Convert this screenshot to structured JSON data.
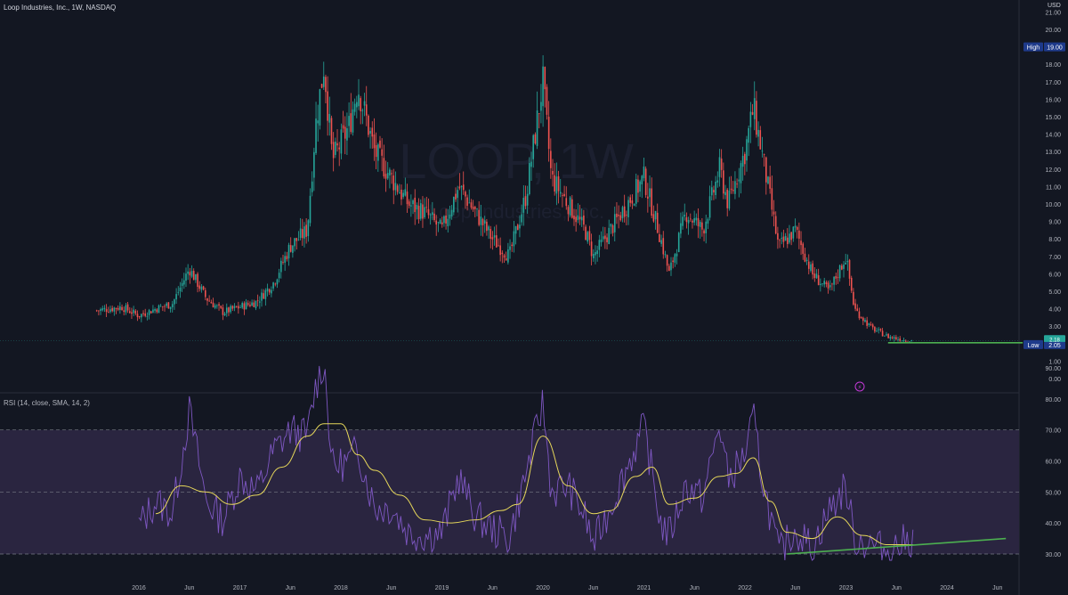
{
  "header": {
    "title": "Loop Industries, Inc., 1W, NASDAQ",
    "currency": "USD",
    "watermark_symbol": "LOOP, 1W",
    "watermark_name": "Loop Industries, Inc."
  },
  "rsi_panel": {
    "label": "RSI (14, close, SMA, 14, 2)"
  },
  "colors": {
    "background": "#131722",
    "up": "#26a69a",
    "down": "#ef5350",
    "rsi_line": "#7e57c2",
    "rsi_sma": "#e6d75a",
    "trendline": "#4caf50",
    "band_fill": "#2a2540",
    "high_badge": "#1e3a8a",
    "low_badge": "#1e3a8a",
    "price_badge": "#26a69a"
  },
  "chart_data": [
    {
      "type": "candlestick",
      "title": "Loop Industries, Inc., 1W, NASDAQ",
      "ylabel": "USD",
      "ylim": [
        -0.5,
        21
      ],
      "y_ticks": [
        "0.00",
        "1.00",
        "2.00",
        "3.00",
        "4.00",
        "5.00",
        "6.00",
        "7.00",
        "8.00",
        "9.00",
        "10.00",
        "11.00",
        "12.00",
        "13.00",
        "14.00",
        "15.00",
        "16.00",
        "17.00",
        "18.00",
        "19.00",
        "20.00",
        "21.00"
      ],
      "x_ticks": [
        "2016",
        "Jun",
        "2017",
        "Jun",
        "2018",
        "Jun",
        "2019",
        "Jun",
        "2020",
        "Jun",
        "2021",
        "Jun",
        "2022",
        "Jun",
        "2023",
        "Jun",
        "2024",
        "Jun"
      ],
      "close_path": [
        {
          "date": "2015-08",
          "close": 3.9
        },
        {
          "date": "2015-11",
          "close": 4.1
        },
        {
          "date": "2016-01",
          "close": 3.6
        },
        {
          "date": "2016-03",
          "close": 4.0
        },
        {
          "date": "2016-05",
          "close": 4.3
        },
        {
          "date": "2016-07",
          "close": 6.3
        },
        {
          "date": "2016-09",
          "close": 4.6
        },
        {
          "date": "2016-11",
          "close": 3.8
        },
        {
          "date": "2017-01",
          "close": 4.1
        },
        {
          "date": "2017-03",
          "close": 4.4
        },
        {
          "date": "2017-05",
          "close": 5.5
        },
        {
          "date": "2017-07",
          "close": 7.6
        },
        {
          "date": "2017-09",
          "close": 8.5
        },
        {
          "date": "2017-10",
          "close": 14.5
        },
        {
          "date": "2017-11",
          "close": 18.0
        },
        {
          "date": "2017-12",
          "close": 12.5
        },
        {
          "date": "2018-02",
          "close": 14.5
        },
        {
          "date": "2018-03",
          "close": 16.8
        },
        {
          "date": "2018-05",
          "close": 13.0
        },
        {
          "date": "2018-07",
          "close": 11.5
        },
        {
          "date": "2018-09",
          "close": 10.0
        },
        {
          "date": "2018-11",
          "close": 9.5
        },
        {
          "date": "2019-01",
          "close": 8.5
        },
        {
          "date": "2019-03",
          "close": 11.0
        },
        {
          "date": "2019-05",
          "close": 9.5
        },
        {
          "date": "2019-07",
          "close": 8.0
        },
        {
          "date": "2019-09",
          "close": 7.0
        },
        {
          "date": "2019-11",
          "close": 10.5
        },
        {
          "date": "2020-01",
          "close": 17.0
        },
        {
          "date": "2020-02",
          "close": 11.5
        },
        {
          "date": "2020-04",
          "close": 10.0
        },
        {
          "date": "2020-06",
          "close": 8.5
        },
        {
          "date": "2020-07",
          "close": 7.0
        },
        {
          "date": "2020-09",
          "close": 8.5
        },
        {
          "date": "2020-11",
          "close": 10.0
        },
        {
          "date": "2021-01",
          "close": 11.5
        },
        {
          "date": "2021-03",
          "close": 8.0
        },
        {
          "date": "2021-04",
          "close": 6.0
        },
        {
          "date": "2021-06",
          "close": 9.5
        },
        {
          "date": "2021-08",
          "close": 8.5
        },
        {
          "date": "2021-10",
          "close": 12.0
        },
        {
          "date": "2021-11",
          "close": 10.0
        },
        {
          "date": "2022-01",
          "close": 13.0
        },
        {
          "date": "2022-02",
          "close": 15.5
        },
        {
          "date": "2022-03",
          "close": 13.0
        },
        {
          "date": "2022-05",
          "close": 7.5
        },
        {
          "date": "2022-07",
          "close": 8.5
        },
        {
          "date": "2022-09",
          "close": 6.0
        },
        {
          "date": "2022-11",
          "close": 5.0
        },
        {
          "date": "2023-01",
          "close": 7.0
        },
        {
          "date": "2023-02",
          "close": 4.0
        },
        {
          "date": "2023-04",
          "close": 2.9
        },
        {
          "date": "2023-06",
          "close": 2.4
        },
        {
          "date": "2023-08",
          "close": 2.2
        },
        {
          "date": "2023-09",
          "close": 2.18
        }
      ],
      "annotations": {
        "high_label": "High",
        "high_value": "19.00",
        "low_label": "Low",
        "low_value": "2.05",
        "last_price": "2.18",
        "support_line": {
          "from": "2023-06",
          "to": "2024-10",
          "value": 2.05
        }
      }
    },
    {
      "type": "line",
      "title": "RSI (14, close, SMA, 14, 2)",
      "ylim": [
        20,
        95
      ],
      "y_ticks": [
        "30.00",
        "40.00",
        "50.00",
        "60.00",
        "70.00",
        "80.00",
        "90.00"
      ],
      "band": [
        30,
        70
      ],
      "midline": 50,
      "series": [
        {
          "name": "RSI",
          "values": [
            {
              "date": "2016-01",
              "v": 39
            },
            {
              "date": "2016-03",
              "v": 47
            },
            {
              "date": "2016-05",
              "v": 43
            },
            {
              "date": "2016-07",
              "v": 76
            },
            {
              "date": "2016-09",
              "v": 47
            },
            {
              "date": "2016-11",
              "v": 41
            },
            {
              "date": "2017-01",
              "v": 55
            },
            {
              "date": "2017-03",
              "v": 50
            },
            {
              "date": "2017-05",
              "v": 63
            },
            {
              "date": "2017-07",
              "v": 70
            },
            {
              "date": "2017-09",
              "v": 68
            },
            {
              "date": "2017-10",
              "v": 84
            },
            {
              "date": "2017-11",
              "v": 92
            },
            {
              "date": "2017-12",
              "v": 58
            },
            {
              "date": "2018-02",
              "v": 60
            },
            {
              "date": "2018-03",
              "v": 64
            },
            {
              "date": "2018-05",
              "v": 45
            },
            {
              "date": "2018-07",
              "v": 45
            },
            {
              "date": "2018-09",
              "v": 37
            },
            {
              "date": "2018-11",
              "v": 36
            },
            {
              "date": "2019-01",
              "v": 37
            },
            {
              "date": "2019-03",
              "v": 55
            },
            {
              "date": "2019-05",
              "v": 42
            },
            {
              "date": "2019-07",
              "v": 38
            },
            {
              "date": "2019-09",
              "v": 35
            },
            {
              "date": "2019-11",
              "v": 56
            },
            {
              "date": "2020-01",
              "v": 79
            },
            {
              "date": "2020-02",
              "v": 50
            },
            {
              "date": "2020-04",
              "v": 52
            },
            {
              "date": "2020-06",
              "v": 42
            },
            {
              "date": "2020-07",
              "v": 33
            },
            {
              "date": "2020-09",
              "v": 45
            },
            {
              "date": "2020-11",
              "v": 58
            },
            {
              "date": "2021-01",
              "v": 71
            },
            {
              "date": "2021-03",
              "v": 40
            },
            {
              "date": "2021-04",
              "v": 36
            },
            {
              "date": "2021-06",
              "v": 52
            },
            {
              "date": "2021-08",
              "v": 48
            },
            {
              "date": "2021-10",
              "v": 72
            },
            {
              "date": "2021-11",
              "v": 54
            },
            {
              "date": "2022-01",
              "v": 62
            },
            {
              "date": "2022-02",
              "v": 74
            },
            {
              "date": "2022-03",
              "v": 55
            },
            {
              "date": "2022-05",
              "v": 30
            },
            {
              "date": "2022-07",
              "v": 38
            },
            {
              "date": "2022-09",
              "v": 32
            },
            {
              "date": "2022-11",
              "v": 44
            },
            {
              "date": "2023-01",
              "v": 52
            },
            {
              "date": "2023-02",
              "v": 35
            },
            {
              "date": "2023-04",
              "v": 33
            },
            {
              "date": "2023-06",
              "v": 31
            },
            {
              "date": "2023-08",
              "v": 34
            },
            {
              "date": "2023-09",
              "v": 35
            }
          ]
        },
        {
          "name": "RSI-based MA",
          "values": [
            {
              "date": "2016-03",
              "v": 43
            },
            {
              "date": "2016-06",
              "v": 52
            },
            {
              "date": "2016-09",
              "v": 50
            },
            {
              "date": "2016-12",
              "v": 46
            },
            {
              "date": "2017-03",
              "v": 49
            },
            {
              "date": "2017-06",
              "v": 58
            },
            {
              "date": "2017-09",
              "v": 68
            },
            {
              "date": "2017-11",
              "v": 72
            },
            {
              "date": "2018-01",
              "v": 72
            },
            {
              "date": "2018-03",
              "v": 62
            },
            {
              "date": "2018-05",
              "v": 57
            },
            {
              "date": "2018-08",
              "v": 49
            },
            {
              "date": "2018-11",
              "v": 41
            },
            {
              "date": "2019-02",
              "v": 40
            },
            {
              "date": "2019-05",
              "v": 41
            },
            {
              "date": "2019-08",
              "v": 44
            },
            {
              "date": "2019-10",
              "v": 46
            },
            {
              "date": "2020-01",
              "v": 68
            },
            {
              "date": "2020-04",
              "v": 52
            },
            {
              "date": "2020-07",
              "v": 43
            },
            {
              "date": "2020-09",
              "v": 44
            },
            {
              "date": "2020-12",
              "v": 55
            },
            {
              "date": "2021-02",
              "v": 58
            },
            {
              "date": "2021-04",
              "v": 46
            },
            {
              "date": "2021-07",
              "v": 48
            },
            {
              "date": "2021-10",
              "v": 55
            },
            {
              "date": "2021-12",
              "v": 56
            },
            {
              "date": "2022-02",
              "v": 61
            },
            {
              "date": "2022-04",
              "v": 47
            },
            {
              "date": "2022-06",
              "v": 37
            },
            {
              "date": "2022-09",
              "v": 35
            },
            {
              "date": "2022-12",
              "v": 42
            },
            {
              "date": "2023-03",
              "v": 36
            },
            {
              "date": "2023-06",
              "v": 33
            },
            {
              "date": "2023-09",
              "v": 33
            }
          ]
        }
      ],
      "trendline": {
        "from": {
          "date": "2022-06",
          "v": 30
        },
        "to": {
          "date": "2024-08",
          "v": 35
        }
      }
    }
  ]
}
